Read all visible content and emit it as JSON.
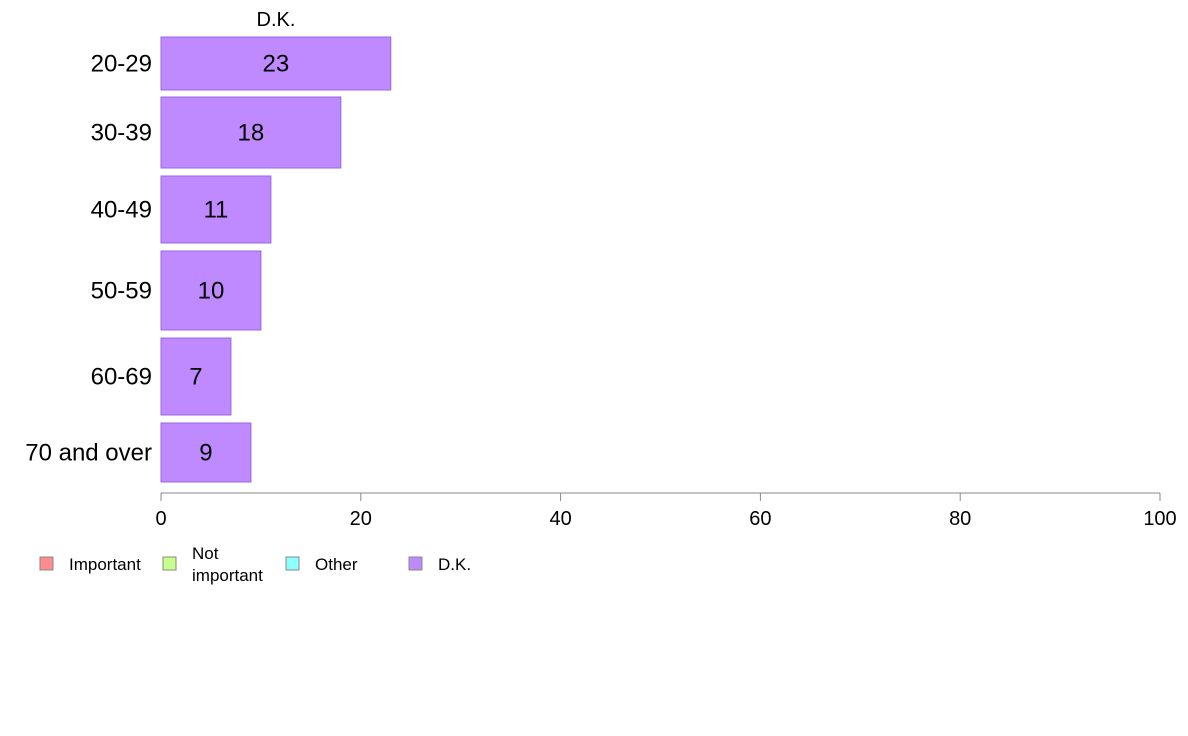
{
  "chart_data": {
    "type": "bar",
    "orientation": "horizontal",
    "title": "D.K.",
    "categories": [
      "20-29",
      "30-39",
      "40-49",
      "50-59",
      "60-69",
      "70 and over"
    ],
    "series": [
      {
        "name": "D.K.",
        "values": [
          23,
          18,
          11,
          10,
          7,
          9
        ],
        "color": "#bf8aff"
      }
    ],
    "xlim": [
      0,
      100
    ],
    "xticks": [
      0,
      20,
      40,
      60,
      80,
      100
    ],
    "grid": false,
    "legend": {
      "position": "bottom-left",
      "entries": [
        {
          "label": "Important",
          "color": "#ff8c8c"
        },
        {
          "label": "Not important",
          "color": "#c6ff8c"
        },
        {
          "label": "Other",
          "color": "#8cffff"
        },
        {
          "label": "D.K.",
          "color": "#bf8aff"
        }
      ]
    },
    "colors": {
      "bar_fill": "#bf8aff",
      "bar_stroke": "#9a66dd",
      "axis": "#888888"
    }
  }
}
